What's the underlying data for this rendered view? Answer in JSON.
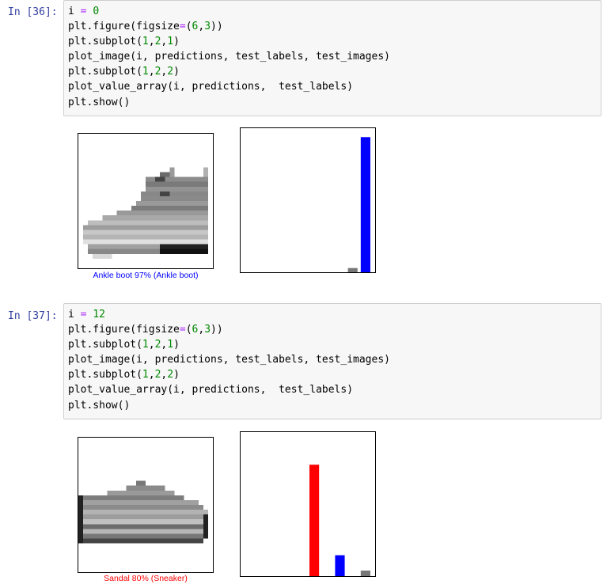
{
  "cells": [
    {
      "prompt": "In [36]:",
      "code": [
        "i = 0",
        "plt.figure(figsize=(6,3))",
        "plt.subplot(1,2,1)",
        "plot_image(i, predictions, test_labels, test_images)",
        "plt.subplot(1,2,2)",
        "plot_value_array(i, predictions,  test_labels)",
        "plt.show()"
      ],
      "caption": "Ankle boot 97% (Ankle boot)",
      "caption_color": "#0000ff",
      "image_subject": "ankle-boot",
      "chart_data": {
        "type": "bar",
        "categories": [
          "0",
          "1",
          "2",
          "3",
          "4",
          "5",
          "6",
          "7",
          "8",
          "9"
        ],
        "values": [
          0.0,
          0.0,
          0.0,
          0.0,
          0.0,
          0.0,
          0.0,
          0.0,
          0.03,
          0.97
        ],
        "colors": [
          "#777777",
          "#777777",
          "#777777",
          "#777777",
          "#777777",
          "#777777",
          "#777777",
          "#777777",
          "#777777",
          "#0000ff"
        ],
        "ylim": [
          0,
          1
        ],
        "xticks": false,
        "yticks": false,
        "grid": false
      }
    },
    {
      "prompt": "In [37]:",
      "code": [
        "i = 12",
        "plt.figure(figsize=(6,3))",
        "plt.subplot(1,2,1)",
        "plot_image(i, predictions, test_labels, test_images)",
        "plt.subplot(1,2,2)",
        "plot_value_array(i, predictions,  test_labels)",
        "plt.show()"
      ],
      "caption": "Sandal 80% (Sneaker)",
      "caption_color": "#ff0000",
      "image_subject": "sneaker",
      "chart_data": {
        "type": "bar",
        "categories": [
          "0",
          "1",
          "2",
          "3",
          "4",
          "5",
          "6",
          "7",
          "8",
          "9"
        ],
        "values": [
          0.0,
          0.0,
          0.0,
          0.0,
          0.0,
          0.8,
          0.0,
          0.15,
          0.0,
          0.04
        ],
        "colors": [
          "#777777",
          "#777777",
          "#777777",
          "#777777",
          "#777777",
          "#ff0000",
          "#777777",
          "#0000ff",
          "#777777",
          "#777777"
        ],
        "ylim": [
          0,
          1
        ],
        "xticks": false,
        "yticks": false,
        "grid": false
      }
    }
  ]
}
